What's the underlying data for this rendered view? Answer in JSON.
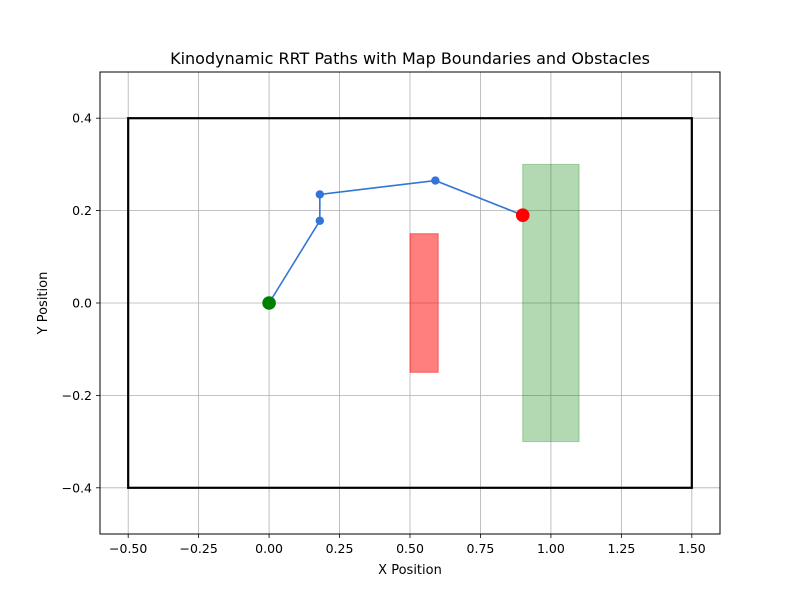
{
  "chart_data": {
    "type": "line",
    "title": "Kinodynamic RRT Paths with Map Boundaries and Obstacles",
    "xlabel": "X Position",
    "ylabel": "Y Position",
    "xlim": [
      -0.6,
      1.6
    ],
    "ylim": [
      -0.5,
      0.5
    ],
    "xticks": [
      -0.5,
      -0.25,
      0.0,
      0.25,
      0.5,
      0.75,
      1.0,
      1.25,
      1.5
    ],
    "xtick_labels": [
      "−0.50",
      "−0.25",
      "0.00",
      "0.25",
      "0.50",
      "0.75",
      "1.00",
      "1.25",
      "1.50"
    ],
    "yticks": [
      -0.4,
      -0.2,
      0.0,
      0.2,
      0.4
    ],
    "ytick_labels": [
      "−0.4",
      "−0.2",
      "0.0",
      "0.2",
      "0.4"
    ],
    "grid": true,
    "boundary": {
      "x": [
        -0.5,
        1.5
      ],
      "y": [
        -0.4,
        0.4
      ],
      "color": "#000000"
    },
    "obstacles": [
      {
        "x": [
          0.5,
          0.6
        ],
        "y": [
          -0.15,
          0.15
        ],
        "color": "#ff0000",
        "opacity": 0.5
      },
      {
        "x": [
          0.9,
          1.1
        ],
        "y": [
          -0.3,
          0.3
        ],
        "color": "#008000",
        "opacity": 0.3
      }
    ],
    "path": {
      "color": "#3375d6",
      "points": [
        {
          "x": 0.0,
          "y": 0.0
        },
        {
          "x": 0.18,
          "y": 0.178
        },
        {
          "x": 0.18,
          "y": 0.235
        },
        {
          "x": 0.59,
          "y": 0.265
        },
        {
          "x": 0.9,
          "y": 0.19
        }
      ]
    },
    "start": {
      "x": 0.0,
      "y": 0.0,
      "color": "#008000"
    },
    "goal": {
      "x": 0.9,
      "y": 0.19,
      "color": "#ff0000"
    }
  }
}
